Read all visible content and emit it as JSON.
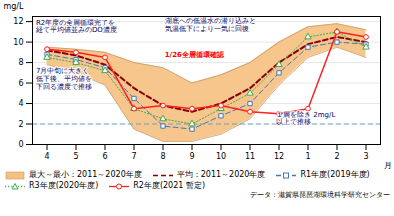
{
  "chart_data": {
    "type": "line",
    "xlabel": "月",
    "ylabel": "mg/L",
    "categories": [
      "4",
      "5",
      "6",
      "7",
      "8",
      "9",
      "10",
      "11",
      "12",
      "1",
      "2",
      "3"
    ],
    "series": [
      {
        "name": "最大～最小：2011～2020年度",
        "type": "area",
        "color": "#f5c080",
        "low": [
          7.8,
          7.0,
          5.8,
          1.5,
          0.3,
          0.3,
          1.0,
          2.5,
          5.8,
          8.5,
          9.5,
          8.5
        ],
        "high": [
          9.5,
          9.3,
          9.0,
          8.0,
          7.5,
          6.0,
          6.8,
          8.0,
          10.0,
          11.5,
          11.8,
          11.2
        ]
      },
      {
        "name": "平均：2011～2020年度",
        "type": "line",
        "color": "#880000",
        "line_style": "dashed",
        "values": [
          9.2,
          8.7,
          7.8,
          5.5,
          3.8,
          3.2,
          4.0,
          5.5,
          8.0,
          9.8,
          10.5,
          10.0
        ]
      },
      {
        "name": "R1年度(2019年度)",
        "type": "line",
        "color": "#4477bb",
        "line_style": "dashed",
        "marker": "square",
        "values": [
          8.8,
          8.3,
          7.5,
          4.5,
          1.8,
          1.5,
          2.8,
          4.0,
          7.0,
          9.5,
          10.0,
          9.8
        ]
      },
      {
        "name": "R3年度(2020年度)",
        "type": "line",
        "color": "#44aa44",
        "line_style": "dotted",
        "marker": "triangle",
        "values": [
          8.5,
          8.0,
          7.2,
          3.5,
          2.5,
          2.0,
          3.5,
          5.0,
          7.8,
          10.5,
          11.0,
          9.5
        ]
      },
      {
        "name": "R2年度(2021 暫定)",
        "type": "line",
        "color": "#ff2020",
        "line_style": "solid",
        "marker": "circle",
        "values": [
          9.3,
          9.0,
          8.5,
          3.5,
          3.8,
          3.5,
          3.8,
          3.2,
          3.0,
          3.5,
          11.0,
          10.5
        ]
      }
    ],
    "hline": {
      "value": 2.0,
      "color": "#5599cc",
      "line_style": "dashed"
    },
    "annotations": [
      {
        "text": "R2年度の全層循環完了を\n経て平均値並みのDO濃度",
        "color": "#000066"
      },
      {
        "text": "湖底への低温水の潜り込みと\n気温低下により一気に回復",
        "color": "#000066"
      },
      {
        "text": "1/26全層循環確認",
        "color": "red"
      },
      {
        "text": "7月中旬に大きく\n低下後、平均値を\n下回る濃度で推移",
        "color": "#000066"
      },
      {
        "text": "１層を除き 2mg/L\n以上で推移",
        "color": "#000066"
      }
    ],
    "source": "データ：滋賀県琵琶湖環境科学研究センター",
    "ylim": [
      0,
      12.5
    ],
    "yticks": [
      0,
      2,
      4,
      6,
      8,
      10,
      12
    ],
    "grid": true,
    "legend": "bottom"
  }
}
